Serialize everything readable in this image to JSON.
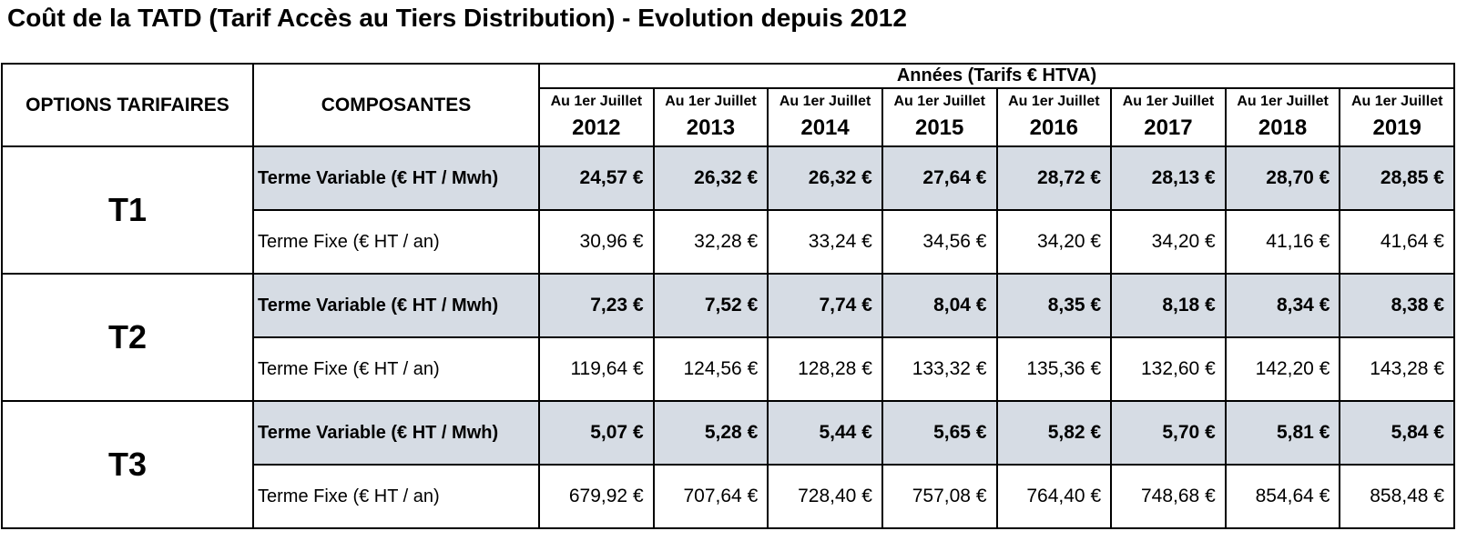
{
  "title": "Coût de la TATD (Tarif Accès au Tiers Distribution) - Evolution depuis 2012",
  "table": {
    "header": {
      "options": "OPTIONS TARIFAIRES",
      "components": "COMPOSANTES",
      "group": "Années (Tarifs € HTVA)",
      "columns": [
        {
          "label": "Au 1er Juillet",
          "year": "2012"
        },
        {
          "label": "Au 1er Juillet",
          "year": "2013"
        },
        {
          "label": "Au 1er Juillet",
          "year": "2014"
        },
        {
          "label": "Au 1er Juillet",
          "year": "2015"
        },
        {
          "label": "Au 1er Juillet",
          "year": "2016"
        },
        {
          "label": "Au 1er Juillet",
          "year": "2017"
        },
        {
          "label": "Au 1er Juillet",
          "year": "2018"
        },
        {
          "label": "Au 1er Juillet",
          "year": "2019"
        }
      ]
    },
    "groups": [
      {
        "option": "T1",
        "rows": [
          {
            "component": "Terme Variable (€ HT / Mwh)",
            "cells": [
              "24,57 €",
              "26,32 €",
              "26,32 €",
              "27,64 €",
              "28,72 €",
              "28,13 €",
              "28,70 €",
              "28,85 €"
            ]
          },
          {
            "component": "Terme Fixe (€ HT / an)",
            "cells": [
              "30,96 €",
              "32,28 €",
              "33,24 €",
              "34,56 €",
              "34,20 €",
              "34,20 €",
              "41,16 €",
              "41,64 €"
            ]
          }
        ]
      },
      {
        "option": "T2",
        "rows": [
          {
            "component": "Terme Variable (€ HT / Mwh)",
            "cells": [
              "7,23 €",
              "7,52 €",
              "7,74 €",
              "8,04 €",
              "8,35 €",
              "8,18 €",
              "8,34 €",
              "8,38 €"
            ]
          },
          {
            "component": "Terme Fixe (€ HT / an)",
            "cells": [
              "119,64 €",
              "124,56 €",
              "128,28 €",
              "133,32 €",
              "135,36 €",
              "132,60 €",
              "142,20 €",
              "143,28 €"
            ]
          }
        ]
      },
      {
        "option": "T3",
        "rows": [
          {
            "component": "Terme Variable (€ HT / Mwh)",
            "cells": [
              "5,07 €",
              "5,28 €",
              "5,44 €",
              "5,65 €",
              "5,82 €",
              "5,70 €",
              "5,81 €",
              "5,84 €"
            ]
          },
          {
            "component": "Terme Fixe (€ HT / an)",
            "cells": [
              "679,92 €",
              "707,64 €",
              "728,40 €",
              "757,08 €",
              "764,40 €",
              "748,68 €",
              "854,64 €",
              "858,48 €"
            ]
          }
        ]
      }
    ]
  }
}
